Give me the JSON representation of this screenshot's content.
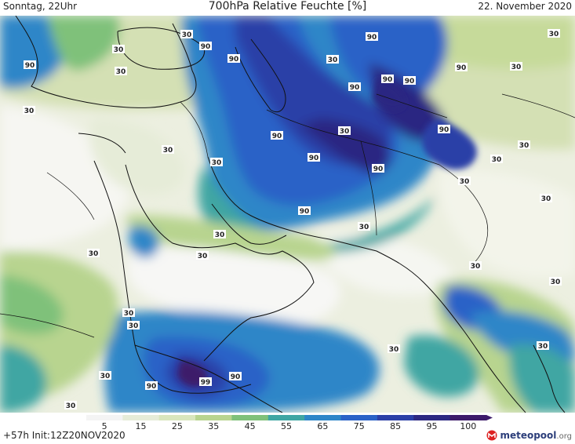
{
  "header": {
    "left": "Sonntag, 22Uhr",
    "title": "700hPa Relative Feuchte [%]",
    "right": "22. November 2020"
  },
  "footer": {
    "run_info": "+57h Init:12Z20NOV2020",
    "logo_name": "meteopool",
    "logo_tld": ".org"
  },
  "legend": {
    "ticks": [
      "5",
      "15",
      "25",
      "35",
      "45",
      "55",
      "65",
      "75",
      "85",
      "95",
      "100"
    ],
    "colors": [
      "#f4f4f4",
      "#e6ecd8",
      "#d9e6bd",
      "#b8d48f",
      "#7fc17a",
      "#3fa6a3",
      "#2d86c8",
      "#2a62c7",
      "#2b3fa7",
      "#2c2882",
      "#3c1a6a"
    ]
  },
  "contour_labels": [
    "90",
    "90",
    "90",
    "90",
    "90",
    "90",
    "90",
    "90",
    "90",
    "90",
    "90",
    "90",
    "90",
    "90",
    "90",
    "99",
    "30",
    "30",
    "30",
    "30",
    "30",
    "30",
    "30",
    "30",
    "30",
    "30",
    "30",
    "30",
    "30",
    "30",
    "30",
    "30",
    "30",
    "30",
    "30",
    "30",
    "30",
    "30",
    "30",
    "30",
    "30",
    "30"
  ],
  "icons": {
    "logo": "meteopool-logo-icon"
  }
}
